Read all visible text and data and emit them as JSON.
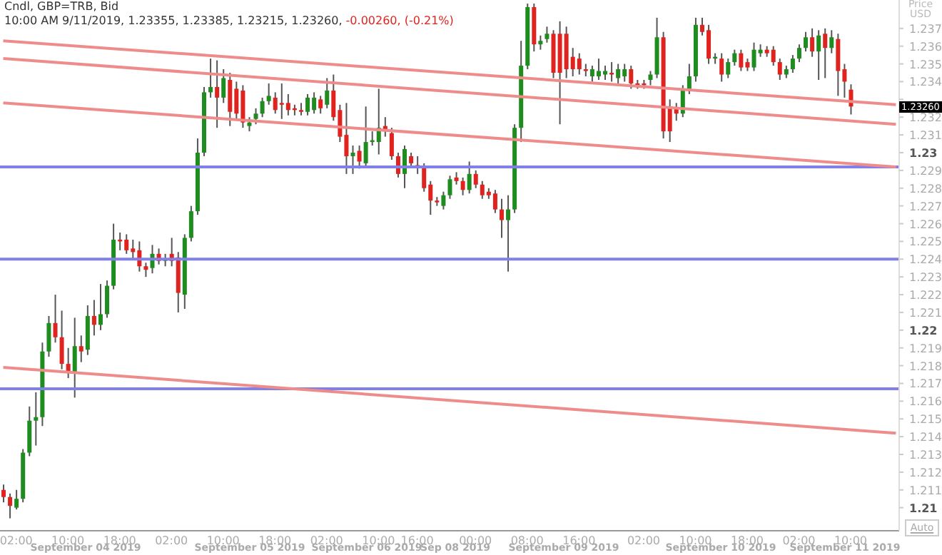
{
  "chart_data": {
    "type": "candlestick",
    "title": "Cndl, GBP=TRB, Bid",
    "subtitle": "10:00 AM 9/11/2019, 1.23355, 1.23385, 1.23215, 1.23260,",
    "ylabel": "Price USD",
    "annotations": [
      "-0.00260, (-0.21%)",
      "September 04 2019",
      "September 05 2019",
      "September 06 2019",
      "Sep 08 2019",
      "September 09 2019",
      "September 10 2019",
      "September 11 2019",
      "1.23260",
      "Auto"
    ],
    "categories": [
      null,
      null,
      "02:00",
      null,
      null,
      null,
      null,
      null,
      null,
      null,
      "10:00",
      null,
      null,
      null,
      null,
      null,
      null,
      null,
      "18:00",
      null,
      null,
      null,
      null,
      null,
      null,
      null,
      "02:00",
      null,
      null,
      null,
      null,
      null,
      null,
      null,
      "10:00",
      null,
      null,
      null,
      null,
      null,
      null,
      null,
      "18:00",
      null,
      null,
      null,
      null,
      null,
      null,
      null,
      "02:00",
      null,
      null,
      null,
      null,
      null,
      null,
      null,
      "10:00",
      null,
      null,
      null,
      null,
      null,
      "16:00",
      null,
      null,
      null,
      null,
      null,
      null,
      null,
      null,
      "00:00",
      null,
      null,
      null,
      null,
      null,
      null,
      null,
      "08:00",
      null,
      null,
      null,
      null,
      null,
      null,
      null,
      "16:00",
      null,
      null,
      null,
      null,
      null,
      null,
      null,
      null,
      null,
      "02:00",
      null,
      null,
      null,
      null,
      null,
      null,
      null,
      "10:00",
      null,
      null,
      null,
      null,
      null,
      null,
      null,
      "18:00",
      null,
      null,
      null,
      null,
      null,
      null,
      null,
      "02:00",
      null,
      null,
      null,
      null,
      null,
      null,
      null,
      "10:00",
      null,
      null,
      null,
      null,
      null,
      null,
      null
    ],
    "ohlc": [
      [
        1.211,
        1.2113,
        1.2103,
        1.2106
      ],
      [
        1.2106,
        1.2108,
        1.2094,
        1.2101
      ],
      [
        1.21,
        1.211,
        1.2099,
        1.2105
      ],
      [
        1.2105,
        1.2133,
        1.2103,
        1.2131
      ],
      [
        1.2131,
        1.2157,
        1.2129,
        1.2149
      ],
      [
        1.2149,
        1.2165,
        1.2135,
        1.2151
      ],
      [
        1.2151,
        1.2193,
        1.2146,
        1.2188
      ],
      [
        1.2188,
        1.2208,
        1.2185,
        1.2204
      ],
      [
        1.2204,
        1.222,
        1.2193,
        1.2196
      ],
      [
        1.2196,
        1.2211,
        1.2178,
        1.2181
      ],
      [
        1.2181,
        1.219,
        1.2173,
        1.2176
      ],
      [
        1.2176,
        1.2207,
        1.2162,
        1.2191
      ],
      [
        1.2191,
        1.2197,
        1.2182,
        1.2188
      ],
      [
        1.2189,
        1.2214,
        1.2186,
        1.2208
      ],
      [
        1.2208,
        1.2217,
        1.2197,
        1.2203
      ],
      [
        1.2203,
        1.2226,
        1.22,
        1.2209
      ],
      [
        1.2209,
        1.2228,
        1.2207,
        1.2225
      ],
      [
        1.2225,
        1.226,
        1.2223,
        1.2251
      ],
      [
        1.2251,
        1.2255,
        1.2245,
        1.225
      ],
      [
        1.2251,
        1.2254,
        1.2243,
        1.2245
      ],
      [
        1.2246,
        1.2251,
        1.224,
        1.2244
      ],
      [
        1.2245,
        1.225,
        1.2233,
        1.2236
      ],
      [
        1.2236,
        1.2238,
        1.223,
        1.2234
      ],
      [
        1.2235,
        1.2248,
        1.2232,
        1.2243
      ],
      [
        1.2243,
        1.2246,
        1.2237,
        1.2239
      ],
      [
        1.2239,
        1.2243,
        1.2236,
        1.224
      ],
      [
        1.2243,
        1.2252,
        1.2236,
        1.2239
      ],
      [
        1.2241,
        1.2244,
        1.221,
        1.2221
      ],
      [
        1.222,
        1.2254,
        1.2212,
        1.2252
      ],
      [
        1.2252,
        1.227,
        1.225,
        1.2267
      ],
      [
        1.2267,
        1.2308,
        1.2265,
        1.23
      ],
      [
        1.23,
        1.2337,
        1.2298,
        1.2334
      ],
      [
        1.2334,
        1.2353,
        1.2331,
        1.2337
      ],
      [
        1.2337,
        1.2352,
        1.2314,
        1.2331
      ],
      [
        1.2331,
        1.2347,
        1.2328,
        1.2342
      ],
      [
        1.2341,
        1.2345,
        1.2315,
        1.2323
      ],
      [
        1.2336,
        1.234,
        1.2318,
        1.2322
      ],
      [
        1.2335,
        1.2338,
        1.2314,
        1.2317
      ],
      [
        1.2315,
        1.232,
        1.2312,
        1.2317
      ],
      [
        1.2319,
        1.2325,
        1.2316,
        1.2322
      ],
      [
        1.2322,
        1.2331,
        1.232,
        1.2329
      ],
      [
        1.2329,
        1.2339,
        1.2327,
        1.2332
      ],
      [
        1.2331,
        1.2334,
        1.2322,
        1.2324
      ],
      [
        1.2328,
        1.2339,
        1.2319,
        1.2327
      ],
      [
        1.2328,
        1.2333,
        1.2321,
        1.2324
      ],
      [
        1.2325,
        1.2327,
        1.2321,
        1.2324
      ],
      [
        1.2324,
        1.2328,
        1.2321,
        1.2323
      ],
      [
        1.2323,
        1.2333,
        1.2321,
        1.2331
      ],
      [
        1.2324,
        1.2334,
        1.2322,
        1.2331
      ],
      [
        1.233,
        1.2332,
        1.2322,
        1.2325
      ],
      [
        1.2327,
        1.2342,
        1.2325,
        1.2335
      ],
      [
        1.2335,
        1.2344,
        1.2318,
        1.232
      ],
      [
        1.2324,
        1.2327,
        1.2306,
        1.2309
      ],
      [
        1.231,
        1.2328,
        1.2288,
        1.2298
      ],
      [
        1.2298,
        1.2304,
        1.2288,
        1.23
      ],
      [
        1.2301,
        1.2304,
        1.2291,
        1.2295
      ],
      [
        1.2294,
        1.2326,
        1.2292,
        1.2306
      ],
      [
        1.2306,
        1.2312,
        1.2304,
        1.2307
      ],
      [
        1.2306,
        1.2336,
        1.2299,
        1.2314
      ],
      [
        1.2315,
        1.232,
        1.2309,
        1.2312
      ],
      [
        1.2311,
        1.2314,
        1.2296,
        1.2298
      ],
      [
        1.2298,
        1.23,
        1.2286,
        1.2288
      ],
      [
        1.2288,
        1.2304,
        1.228,
        1.2302
      ],
      [
        1.2298,
        1.23,
        1.2292,
        1.2294
      ],
      [
        1.2293,
        1.2298,
        1.2288,
        1.2292
      ],
      [
        1.2292,
        1.2294,
        1.2278,
        1.228
      ],
      [
        1.2282,
        1.2284,
        1.2265,
        1.2273
      ],
      [
        1.2273,
        1.2275,
        1.227,
        1.2272
      ],
      [
        1.227,
        1.2278,
        1.2268,
        1.2276
      ],
      [
        1.2276,
        1.2287,
        1.2274,
        1.2285
      ],
      [
        1.2286,
        1.2289,
        1.2282,
        1.2284
      ],
      [
        1.2284,
        1.2286,
        1.2276,
        1.2279
      ],
      [
        1.2279,
        1.2295,
        1.2277,
        1.2288
      ],
      [
        1.2288,
        1.229,
        1.228,
        1.2282
      ],
      [
        1.2282,
        1.2284,
        1.2274,
        1.2276
      ],
      [
        1.2278,
        1.228,
        1.2274,
        1.2276
      ],
      [
        1.2277,
        1.2279,
        1.2266,
        1.2268
      ],
      [
        1.2268,
        1.2274,
        1.2252,
        1.2262
      ],
      [
        1.2262,
        1.2276,
        1.2233,
        1.2268
      ],
      [
        1.2268,
        1.2316,
        1.2266,
        1.2314
      ],
      [
        1.2314,
        1.2363,
        1.2306,
        1.2349
      ],
      [
        1.2349,
        1.2384,
        1.2347,
        1.2382
      ],
      [
        1.2382,
        1.2384,
        1.2357,
        1.2361
      ],
      [
        1.2361,
        1.2366,
        1.2358,
        1.2363
      ],
      [
        1.2364,
        1.2371,
        1.2362,
        1.2367
      ],
      [
        1.2367,
        1.2369,
        1.2342,
        1.2345
      ],
      [
        1.2367,
        1.2374,
        1.2316,
        1.2345
      ],
      [
        1.2367,
        1.2371,
        1.2342,
        1.2347
      ],
      [
        1.2354,
        1.2359,
        1.2343,
        1.2347
      ],
      [
        1.2353,
        1.2356,
        1.2344,
        1.2347
      ],
      [
        1.2347,
        1.235,
        1.2343,
        1.2346
      ],
      [
        1.2343,
        1.2349,
        1.234,
        1.2347
      ],
      [
        1.2343,
        1.2353,
        1.2341,
        1.2346
      ],
      [
        1.2344,
        1.2349,
        1.2341,
        1.2346
      ],
      [
        1.2345,
        1.2351,
        1.234,
        1.2344
      ],
      [
        1.2342,
        1.235,
        1.2339,
        1.2347
      ],
      [
        1.2343,
        1.235,
        1.234,
        1.2347
      ],
      [
        1.2347,
        1.2349,
        1.2336,
        1.2339
      ],
      [
        1.2339,
        1.2341,
        1.2336,
        1.2338
      ],
      [
        1.2339,
        1.2341,
        1.2336,
        1.2338
      ],
      [
        1.2341,
        1.2346,
        1.2338,
        1.2344
      ],
      [
        1.2344,
        1.2376,
        1.2342,
        1.2365
      ],
      [
        1.2365,
        1.2368,
        1.2308,
        1.2312
      ],
      [
        1.2325,
        1.233,
        1.2306,
        1.2312
      ],
      [
        1.2325,
        1.2328,
        1.2318,
        1.2322
      ],
      [
        1.2322,
        1.2338,
        1.232,
        1.2335
      ],
      [
        1.2335,
        1.235,
        1.2333,
        1.2343
      ],
      [
        1.2343,
        1.2376,
        1.234,
        1.2372
      ],
      [
        1.2372,
        1.2376,
        1.2366,
        1.2368
      ],
      [
        1.2369,
        1.2372,
        1.235,
        1.2353
      ],
      [
        1.2353,
        1.2356,
        1.235,
        1.2354
      ],
      [
        1.2353,
        1.2356,
        1.234,
        1.2344
      ],
      [
        1.2344,
        1.2353,
        1.2342,
        1.2351
      ],
      [
        1.2351,
        1.2358,
        1.2349,
        1.2356
      ],
      [
        1.2356,
        1.2358,
        1.2346,
        1.2348
      ],
      [
        1.2351,
        1.2353,
        1.2346,
        1.2348
      ],
      [
        1.2348,
        1.2362,
        1.2346,
        1.2358
      ],
      [
        1.2356,
        1.2361,
        1.2354,
        1.2358
      ],
      [
        1.2358,
        1.236,
        1.2354,
        1.2356
      ],
      [
        1.2358,
        1.236,
        1.2349,
        1.2351
      ],
      [
        1.2351,
        1.2353,
        1.2341,
        1.2344
      ],
      [
        1.2344,
        1.2349,
        1.2342,
        1.2347
      ],
      [
        1.2347,
        1.2355,
        1.2345,
        1.2353
      ],
      [
        1.2353,
        1.2361,
        1.2351,
        1.2359
      ],
      [
        1.2359,
        1.2368,
        1.2357,
        1.2365
      ],
      [
        1.2365,
        1.237,
        1.2354,
        1.2357
      ],
      [
        1.2357,
        1.2369,
        1.2341,
        1.2366
      ],
      [
        1.2367,
        1.237,
        1.2342,
        1.2359
      ],
      [
        1.2359,
        1.2369,
        1.2356,
        1.2365
      ],
      [
        1.2364,
        1.2367,
        1.2332,
        1.2346
      ],
      [
        1.2347,
        1.235,
        1.2331,
        1.234
      ],
      [
        1.23355,
        1.23385,
        1.23215,
        1.2326
      ],
      null,
      null,
      null,
      null,
      null,
      null,
      null
    ],
    "series": [
      {
        "type": "line",
        "color": "#ee8c8c",
        "values": [
          1.2363,
          null,
          null,
          null,
          null,
          null,
          null,
          null,
          null,
          null,
          null,
          null,
          null,
          null,
          null,
          null,
          null,
          null,
          null,
          null,
          null,
          null,
          null,
          null,
          null,
          null,
          null,
          null,
          null,
          null,
          null,
          null,
          null,
          null,
          null,
          null,
          null,
          null,
          null,
          null,
          null,
          null,
          null,
          null,
          null,
          null,
          null,
          null,
          null,
          null,
          null,
          null,
          null,
          null,
          null,
          null,
          null,
          null,
          null,
          null,
          null,
          null,
          null,
          null,
          null,
          null,
          null,
          null,
          null,
          null,
          null,
          null,
          null,
          null,
          null,
          null,
          null,
          null,
          null,
          null,
          null,
          null,
          null,
          null,
          null,
          null,
          null,
          null,
          null,
          null,
          null,
          null,
          null,
          null,
          null,
          null,
          null,
          null,
          null,
          null,
          null,
          null,
          null,
          null,
          null,
          null,
          null,
          null,
          null,
          null,
          null,
          null,
          null,
          null,
          null,
          null,
          null,
          null,
          null,
          null,
          null,
          null,
          null,
          null,
          null,
          null,
          null,
          null,
          null,
          null,
          null,
          null,
          null,
          null,
          null,
          null,
          null,
          null,
          1.2327
        ]
      },
      {
        "type": "line",
        "color": "#ee8c8c",
        "values": [
          1.2353,
          null,
          null,
          null,
          null,
          null,
          null,
          null,
          null,
          null,
          null,
          null,
          null,
          null,
          null,
          null,
          null,
          null,
          null,
          null,
          null,
          null,
          null,
          null,
          null,
          null,
          null,
          null,
          null,
          null,
          null,
          null,
          null,
          null,
          null,
          null,
          null,
          null,
          null,
          null,
          null,
          null,
          null,
          null,
          null,
          null,
          null,
          null,
          null,
          null,
          null,
          null,
          null,
          null,
          null,
          null,
          null,
          null,
          null,
          null,
          null,
          null,
          null,
          null,
          null,
          null,
          null,
          null,
          null,
          null,
          null,
          null,
          null,
          null,
          null,
          null,
          null,
          null,
          null,
          null,
          null,
          null,
          null,
          null,
          null,
          null,
          null,
          null,
          null,
          null,
          null,
          null,
          null,
          null,
          null,
          null,
          null,
          null,
          null,
          null,
          null,
          null,
          null,
          null,
          null,
          null,
          null,
          null,
          null,
          null,
          null,
          null,
          null,
          null,
          null,
          null,
          null,
          null,
          null,
          null,
          null,
          null,
          null,
          null,
          null,
          null,
          null,
          null,
          null,
          null,
          null,
          null,
          null,
          null,
          null,
          null,
          null,
          null,
          1.2316
        ]
      },
      {
        "type": "line",
        "color": "#ee8c8c",
        "values": [
          1.2328,
          null,
          null,
          null,
          null,
          null,
          null,
          null,
          null,
          null,
          null,
          null,
          null,
          null,
          null,
          null,
          null,
          null,
          null,
          null,
          null,
          null,
          null,
          null,
          null,
          null,
          null,
          null,
          null,
          null,
          null,
          null,
          null,
          null,
          null,
          null,
          null,
          null,
          null,
          null,
          null,
          null,
          null,
          null,
          null,
          null,
          null,
          null,
          null,
          null,
          null,
          null,
          null,
          null,
          null,
          null,
          null,
          null,
          null,
          null,
          null,
          null,
          null,
          null,
          null,
          null,
          null,
          null,
          null,
          null,
          null,
          null,
          null,
          null,
          null,
          null,
          null,
          null,
          null,
          null,
          null,
          null,
          null,
          null,
          null,
          null,
          null,
          null,
          null,
          null,
          null,
          null,
          null,
          null,
          null,
          null,
          null,
          null,
          null,
          null,
          null,
          null,
          null,
          null,
          null,
          null,
          null,
          null,
          null,
          null,
          null,
          null,
          null,
          null,
          null,
          null,
          null,
          null,
          null,
          null,
          null,
          null,
          null,
          null,
          null,
          null,
          null,
          null,
          null,
          null,
          null,
          null,
          null,
          null,
          null,
          null,
          null,
          null,
          1.2292
        ]
      },
      {
        "type": "line",
        "color": "#ee8c8c",
        "values": [
          1.2179,
          null,
          null,
          null,
          null,
          null,
          null,
          null,
          null,
          null,
          null,
          null,
          null,
          null,
          null,
          null,
          null,
          null,
          null,
          null,
          null,
          null,
          null,
          null,
          null,
          null,
          null,
          null,
          null,
          null,
          null,
          null,
          null,
          null,
          null,
          null,
          null,
          null,
          null,
          null,
          null,
          null,
          null,
          null,
          null,
          null,
          null,
          null,
          null,
          null,
          null,
          null,
          null,
          null,
          null,
          null,
          null,
          null,
          null,
          null,
          null,
          null,
          null,
          null,
          null,
          null,
          null,
          null,
          null,
          null,
          null,
          null,
          null,
          null,
          null,
          null,
          null,
          null,
          null,
          null,
          null,
          null,
          null,
          null,
          null,
          null,
          null,
          null,
          null,
          null,
          null,
          null,
          null,
          null,
          null,
          null,
          null,
          null,
          null,
          null,
          null,
          null,
          null,
          null,
          null,
          null,
          null,
          null,
          null,
          null,
          null,
          null,
          null,
          null,
          null,
          null,
          null,
          null,
          null,
          null,
          null,
          null,
          null,
          null,
          null,
          null,
          null,
          null,
          null,
          null,
          null,
          null,
          null,
          null,
          null,
          null,
          null,
          null,
          1.2142
        ]
      }
    ],
    "ref_lines": [
      {
        "axis": "y",
        "value": 1.2292,
        "color": "#8080e8"
      },
      {
        "axis": "y",
        "value": 1.224,
        "color": "#8080e8"
      },
      {
        "axis": "y",
        "value": 1.2167,
        "color": "#8080e8"
      }
    ],
    "ylim": [
      1.2087,
      1.2386
    ],
    "yticks": [
      1.21,
      1.211,
      1.212,
      1.213,
      1.214,
      1.215,
      1.216,
      1.217,
      1.218,
      1.219,
      1.22,
      1.221,
      1.222,
      1.223,
      1.224,
      1.225,
      1.226,
      1.227,
      1.228,
      1.229,
      1.23,
      1.231,
      1.232,
      {
        "value": 1.233,
        "label": null
      },
      1.234,
      1.235,
      1.236,
      1.237
    ]
  }
}
